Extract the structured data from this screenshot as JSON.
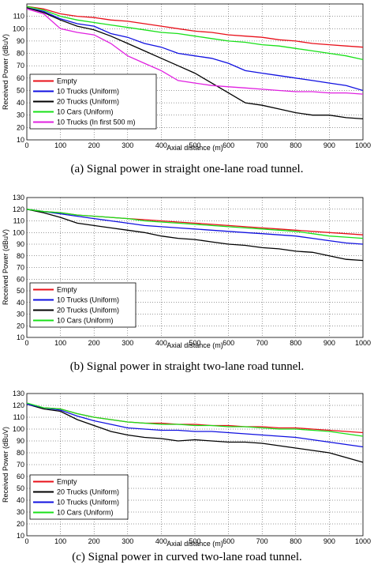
{
  "chart_data": [
    {
      "type": "line",
      "caption": "(a) Signal power in straight one-lane road tunnel.",
      "xlabel": "Axial distance (m)",
      "ylabel": "Received Power (dBuV)",
      "xlim": [
        0,
        1000
      ],
      "ylim": [
        10,
        120
      ],
      "xticks": [
        "0",
        "100",
        "200",
        "300",
        "400",
        "500",
        "600",
        "700",
        "800",
        "900",
        "1000"
      ],
      "yticks": [
        "10",
        "20",
        "30",
        "40",
        "50",
        "60",
        "70",
        "80",
        "90",
        "100",
        "110"
      ],
      "grid": true,
      "legend_position": "lower-left",
      "series": [
        {
          "name": "Empty",
          "color": "#e8101a",
          "x": [
            0,
            50,
            100,
            150,
            200,
            250,
            300,
            350,
            400,
            450,
            500,
            550,
            600,
            650,
            700,
            750,
            800,
            850,
            900,
            950,
            1000
          ],
          "y": [
            118,
            116,
            112,
            110,
            109,
            107,
            106,
            104,
            102,
            100,
            98,
            97,
            95,
            94,
            93,
            91,
            90,
            88,
            87,
            86,
            85
          ]
        },
        {
          "name": "10 Trucks (Uniform)",
          "color": "#1010e0",
          "x": [
            0,
            50,
            100,
            150,
            200,
            250,
            300,
            350,
            400,
            450,
            500,
            550,
            600,
            650,
            700,
            750,
            800,
            850,
            900,
            950,
            1000
          ],
          "y": [
            117,
            114,
            108,
            104,
            102,
            96,
            93,
            88,
            85,
            80,
            78,
            76,
            72,
            66,
            64,
            62,
            60,
            58,
            56,
            54,
            50
          ]
        },
        {
          "name": "20 Trucks (Uniform)",
          "color": "#000000",
          "x": [
            0,
            50,
            100,
            150,
            200,
            250,
            300,
            350,
            400,
            450,
            500,
            550,
            600,
            650,
            700,
            750,
            800,
            850,
            900,
            950,
            1000
          ],
          "y": [
            117,
            113,
            107,
            102,
            99,
            94,
            88,
            82,
            76,
            70,
            64,
            56,
            48,
            40,
            38,
            35,
            32,
            30,
            30,
            28,
            27
          ]
        },
        {
          "name": "10 Cars (Uniform)",
          "color": "#18e018",
          "x": [
            0,
            50,
            100,
            150,
            200,
            250,
            300,
            350,
            400,
            450,
            500,
            550,
            600,
            650,
            700,
            750,
            800,
            850,
            900,
            950,
            1000
          ],
          "y": [
            118,
            115,
            110,
            107,
            105,
            103,
            101,
            99,
            97,
            96,
            94,
            92,
            90,
            89,
            87,
            86,
            84,
            82,
            80,
            78,
            75
          ]
        },
        {
          "name": "10 Trucks (In first 500 m)",
          "color": "#e020e0",
          "x": [
            0,
            50,
            100,
            150,
            200,
            250,
            300,
            350,
            400,
            450,
            500,
            550,
            600,
            650,
            700,
            750,
            800,
            850,
            900,
            950,
            1000
          ],
          "y": [
            116,
            112,
            100,
            97,
            95,
            88,
            78,
            72,
            66,
            58,
            56,
            54,
            53,
            52,
            51,
            50,
            49,
            49,
            48,
            48,
            47
          ]
        }
      ]
    },
    {
      "type": "line",
      "caption": "(b) Signal power in straight two-lane road tunnel.",
      "xlabel": "Axial distance (m)",
      "ylabel": "Received Power (dBuV)",
      "xlim": [
        0,
        1000
      ],
      "ylim": [
        10,
        130
      ],
      "xticks": [
        "0",
        "100",
        "200",
        "300",
        "400",
        "500",
        "600",
        "700",
        "800",
        "900",
        "1000"
      ],
      "yticks": [
        "10",
        "20",
        "30",
        "40",
        "50",
        "60",
        "70",
        "80",
        "90",
        "100",
        "110",
        "120",
        "130"
      ],
      "grid": true,
      "legend_position": "lower-left",
      "series": [
        {
          "name": "Empty",
          "color": "#e8101a",
          "x": [
            0,
            50,
            100,
            150,
            200,
            250,
            300,
            350,
            400,
            450,
            500,
            550,
            600,
            650,
            700,
            750,
            800,
            850,
            900,
            950,
            1000
          ],
          "y": [
            120,
            118,
            117,
            115,
            114,
            113,
            112,
            111,
            110,
            109,
            108,
            107,
            106,
            105,
            104,
            103,
            102,
            101,
            100,
            99,
            98
          ]
        },
        {
          "name": "10 Trucks (Uniform)",
          "color": "#1010e0",
          "x": [
            0,
            50,
            100,
            150,
            200,
            250,
            300,
            350,
            400,
            450,
            500,
            550,
            600,
            650,
            700,
            750,
            800,
            850,
            900,
            950,
            1000
          ],
          "y": [
            120,
            118,
            116,
            114,
            112,
            110,
            108,
            106,
            105,
            104,
            103,
            102,
            101,
            100,
            99,
            98,
            97,
            95,
            93,
            91,
            90
          ]
        },
        {
          "name": "20 Trucks (Uniform)",
          "color": "#000000",
          "x": [
            0,
            50,
            100,
            150,
            200,
            250,
            300,
            350,
            400,
            450,
            500,
            550,
            600,
            650,
            700,
            750,
            800,
            850,
            900,
            950,
            1000
          ],
          "y": [
            120,
            117,
            113,
            108,
            106,
            104,
            102,
            100,
            97,
            95,
            94,
            92,
            90,
            89,
            87,
            86,
            84,
            83,
            80,
            77,
            76
          ]
        },
        {
          "name": "10 Cars (Uniform)",
          "color": "#18e018",
          "x": [
            0,
            50,
            100,
            150,
            200,
            250,
            300,
            350,
            400,
            450,
            500,
            550,
            600,
            650,
            700,
            750,
            800,
            850,
            900,
            950,
            1000
          ],
          "y": [
            120,
            118,
            117,
            115,
            114,
            113,
            112,
            110,
            109,
            108,
            107,
            106,
            105,
            104,
            103,
            102,
            101,
            99,
            97,
            96,
            95
          ]
        }
      ]
    },
    {
      "type": "line",
      "caption": "(c) Signal power in curved two-lane road tunnel.",
      "xlabel": "Axial distance (m)",
      "ylabel": "Received Power (dBuV)",
      "xlim": [
        0,
        1000
      ],
      "ylim": [
        10,
        130
      ],
      "xticks": [
        "0",
        "100",
        "200",
        "300",
        "400",
        "500",
        "600",
        "700",
        "800",
        "900",
        "1000"
      ],
      "yticks": [
        "10",
        "20",
        "30",
        "40",
        "50",
        "60",
        "70",
        "80",
        "90",
        "100",
        "110",
        "120",
        "130"
      ],
      "grid": true,
      "legend_position": "lower-left",
      "series": [
        {
          "name": "Empty",
          "color": "#e8101a",
          "x": [
            0,
            50,
            100,
            150,
            200,
            250,
            300,
            350,
            400,
            450,
            500,
            550,
            600,
            650,
            700,
            750,
            800,
            850,
            900,
            950,
            1000
          ],
          "y": [
            121,
            118,
            117,
            113,
            110,
            108,
            106,
            105,
            105,
            104,
            104,
            103,
            103,
            102,
            102,
            101,
            101,
            100,
            99,
            98,
            97
          ]
        },
        {
          "name": "20 Trucks (Uniform)",
          "color": "#000000",
          "x": [
            0,
            50,
            100,
            150,
            200,
            250,
            300,
            350,
            400,
            450,
            500,
            550,
            600,
            650,
            700,
            750,
            800,
            850,
            900,
            950,
            1000
          ],
          "y": [
            121,
            117,
            115,
            108,
            103,
            98,
            95,
            93,
            92,
            90,
            91,
            90,
            89,
            89,
            88,
            86,
            84,
            82,
            80,
            76,
            72
          ]
        },
        {
          "name": "10 Trucks (Uniform)",
          "color": "#1010e0",
          "x": [
            0,
            50,
            100,
            150,
            200,
            250,
            300,
            350,
            400,
            450,
            500,
            550,
            600,
            650,
            700,
            750,
            800,
            850,
            900,
            950,
            1000
          ],
          "y": [
            121,
            118,
            116,
            111,
            107,
            104,
            101,
            100,
            99,
            99,
            98,
            98,
            97,
            96,
            95,
            94,
            93,
            91,
            89,
            87,
            85
          ]
        },
        {
          "name": "10 Cars (Uniform)",
          "color": "#18e018",
          "x": [
            0,
            50,
            100,
            150,
            200,
            250,
            300,
            350,
            400,
            450,
            500,
            550,
            600,
            650,
            700,
            750,
            800,
            850,
            900,
            950,
            1000
          ],
          "y": [
            122,
            118,
            117,
            113,
            110,
            108,
            106,
            105,
            104,
            104,
            103,
            103,
            102,
            102,
            101,
            100,
            100,
            99,
            98,
            96,
            94
          ]
        }
      ]
    }
  ]
}
